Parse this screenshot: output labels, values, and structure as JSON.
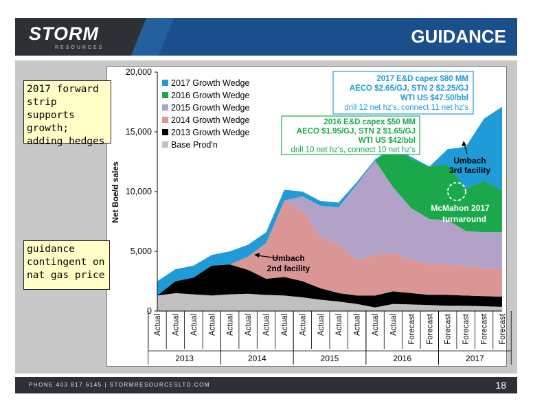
{
  "header": {
    "logo": "STORM",
    "logo_sub": "RESOURCES",
    "title": "GUIDANCE"
  },
  "notes": {
    "top": "2017 forward\nstrip supports\ngrowth;\nadding hedges",
    "bottom": "guidance\ncontingent on\nnat gas price"
  },
  "footer": {
    "contact": "PHONE 403 817 6145   |   STORMRESOURCESLTD.COM",
    "page": "18"
  },
  "colors": {
    "base": "#c0c0c0",
    "w2013": "#000000",
    "w2014": "#d99694",
    "w2015": "#b3a2c7",
    "w2016": "#1aa84a",
    "w2017": "#1f9bd7"
  },
  "chart_data": {
    "type": "area",
    "stacked": true,
    "ylabel": "Net Boe/d sales",
    "ylim": [
      0,
      20000
    ],
    "yticks": [
      0,
      5000,
      10000,
      15000,
      20000
    ],
    "ytick_labels": [
      "0",
      "5,000",
      "10,000",
      "15,000",
      "20,000"
    ],
    "x_labels": [
      "Actual",
      "Actual",
      "Actual",
      "Actual",
      "Actual",
      "Actual",
      "Actual",
      "Actual",
      "Actual",
      "Actual",
      "Actual",
      "Actual",
      "Actual",
      "Actual",
      "Forecast",
      "Forecast",
      "Forecast",
      "Forecast",
      "Forecast",
      "Forecast"
    ],
    "years": [
      {
        "label": "2013",
        "start": 0,
        "end": 3
      },
      {
        "label": "2014",
        "start": 4,
        "end": 7
      },
      {
        "label": "2015",
        "start": 8,
        "end": 11
      },
      {
        "label": "2016",
        "start": 12,
        "end": 15
      },
      {
        "label": "2017",
        "start": 16,
        "end": 19
      }
    ],
    "legend_position": "top-left",
    "series": [
      {
        "name": "Base Prod'n",
        "color_key": "base",
        "values": [
          1300,
          1500,
          1400,
          1300,
          1400,
          1450,
          1350,
          1300,
          1150,
          950,
          800,
          600,
          300,
          600,
          550,
          500,
          450,
          450,
          400,
          350
        ]
      },
      {
        "name": "2013 Growth Wedge",
        "color_key": "w2013",
        "values": [
          0,
          1000,
          1400,
          2500,
          2500,
          2000,
          1350,
          1550,
          1350,
          950,
          700,
          700,
          1000,
          1050,
          950,
          850,
          900,
          850,
          850,
          850
        ]
      },
      {
        "name": "2014 Growth Wedge",
        "color_key": "w2014",
        "values": [
          0,
          0,
          0,
          0,
          0,
          1100,
          3000,
          6400,
          5900,
          4300,
          4000,
          3000,
          3400,
          3200,
          2800,
          2550,
          2600,
          2500,
          2350,
          2400
        ]
      },
      {
        "name": "2015 Growth Wedge",
        "color_key": "w2015",
        "values": [
          0,
          0,
          0,
          0,
          0,
          0,
          0,
          0,
          1200,
          2600,
          3200,
          6300,
          7900,
          5500,
          4300,
          3800,
          3650,
          2900,
          3000,
          3000
        ]
      },
      {
        "name": "2016 Growth Wedge",
        "color_key": "w2016",
        "values": [
          0,
          0,
          0,
          0,
          0,
          0,
          0,
          0,
          0,
          0,
          0,
          0,
          0,
          3300,
          4100,
          4400,
          4650,
          3550,
          4300,
          3500
        ]
      },
      {
        "name": "2017 Growth Wedge",
        "color_key": "w2017",
        "values": [
          1200,
          1000,
          1000,
          900,
          1100,
          1000,
          900,
          900,
          400,
          400,
          400,
          200,
          100,
          100,
          200,
          0,
          1300,
          3500,
          5200,
          7000
        ]
      }
    ],
    "legend": [
      "2017 Growth Wedge",
      "2016 Growth Wedge",
      "2015 Growth Wedge",
      "2014 Growth Wedge",
      "2013 Growth Wedge",
      "Base Prod'n"
    ],
    "annotations": {
      "capex2017": [
        "2017 E&D capex $80 MM",
        "AECO $2.65/GJ, STN 2 $2.25/GJ",
        "WTI US $47.50/bbl",
        "drill 12 net hz's, connect 11 net hz's"
      ],
      "capex2016": [
        "2016 E&D capex $50 MM",
        "AECO $1.95/GJ, STN 2 $1.65/GJ",
        "WTI US $42/bbl",
        "drill 10 net hz's, connect 10 net hz's"
      ],
      "umbach2": [
        "Umbach",
        "2nd facility"
      ],
      "umbach3": [
        "Umbach",
        "3rd  facility"
      ],
      "mcmahon": [
        "McMahon 2017",
        "turnaround"
      ]
    }
  }
}
